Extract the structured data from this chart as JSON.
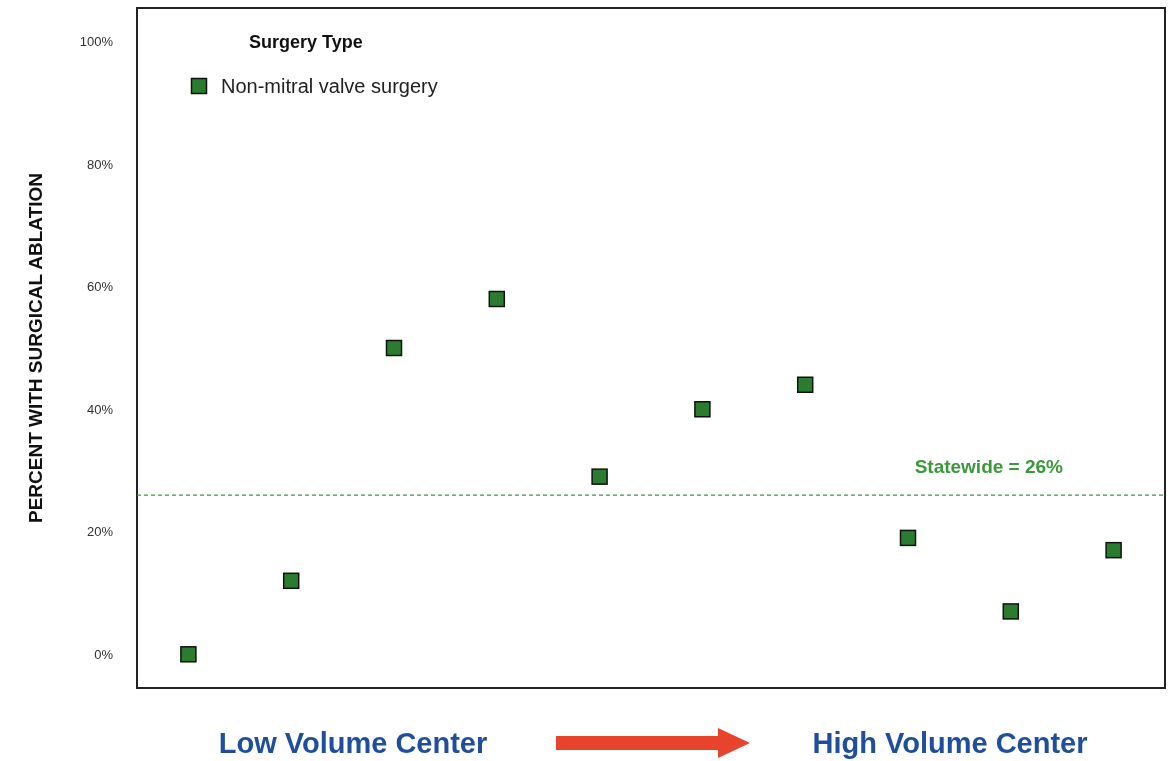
{
  "chart_data": {
    "type": "scatter",
    "ylabel": "PERCENT WITH SURGICAL ABLATION",
    "legend_title": "Surgery Type",
    "categories": [
      null,
      null,
      null,
      null,
      null,
      null,
      null,
      null,
      null,
      null
    ],
    "series": [
      {
        "name": "Non-mitral valve surgery",
        "color": "#2a7d2e",
        "values": [
          0,
          12,
          50,
          58,
          29,
          40,
          44,
          19,
          7,
          17
        ]
      }
    ],
    "ylim": [
      -5.5,
      105.5
    ],
    "yticks": [
      {
        "value": 0,
        "label": "0%"
      },
      {
        "value": 20,
        "label": "20%"
      },
      {
        "value": 40,
        "label": "40%"
      },
      {
        "value": 60,
        "label": "60%"
      },
      {
        "value": 80,
        "label": "80%"
      },
      {
        "value": 100,
        "label": "100%"
      }
    ],
    "ref_lines": [
      {
        "axis": "y",
        "value": 26,
        "label": "Statewide = 26%",
        "color": "#3a9a3a",
        "line_style": "dashed"
      }
    ],
    "annotations": [
      "Low Volume Center",
      "High Volume Center"
    ],
    "marker": "square",
    "legend": "top left",
    "grid": false
  }
}
